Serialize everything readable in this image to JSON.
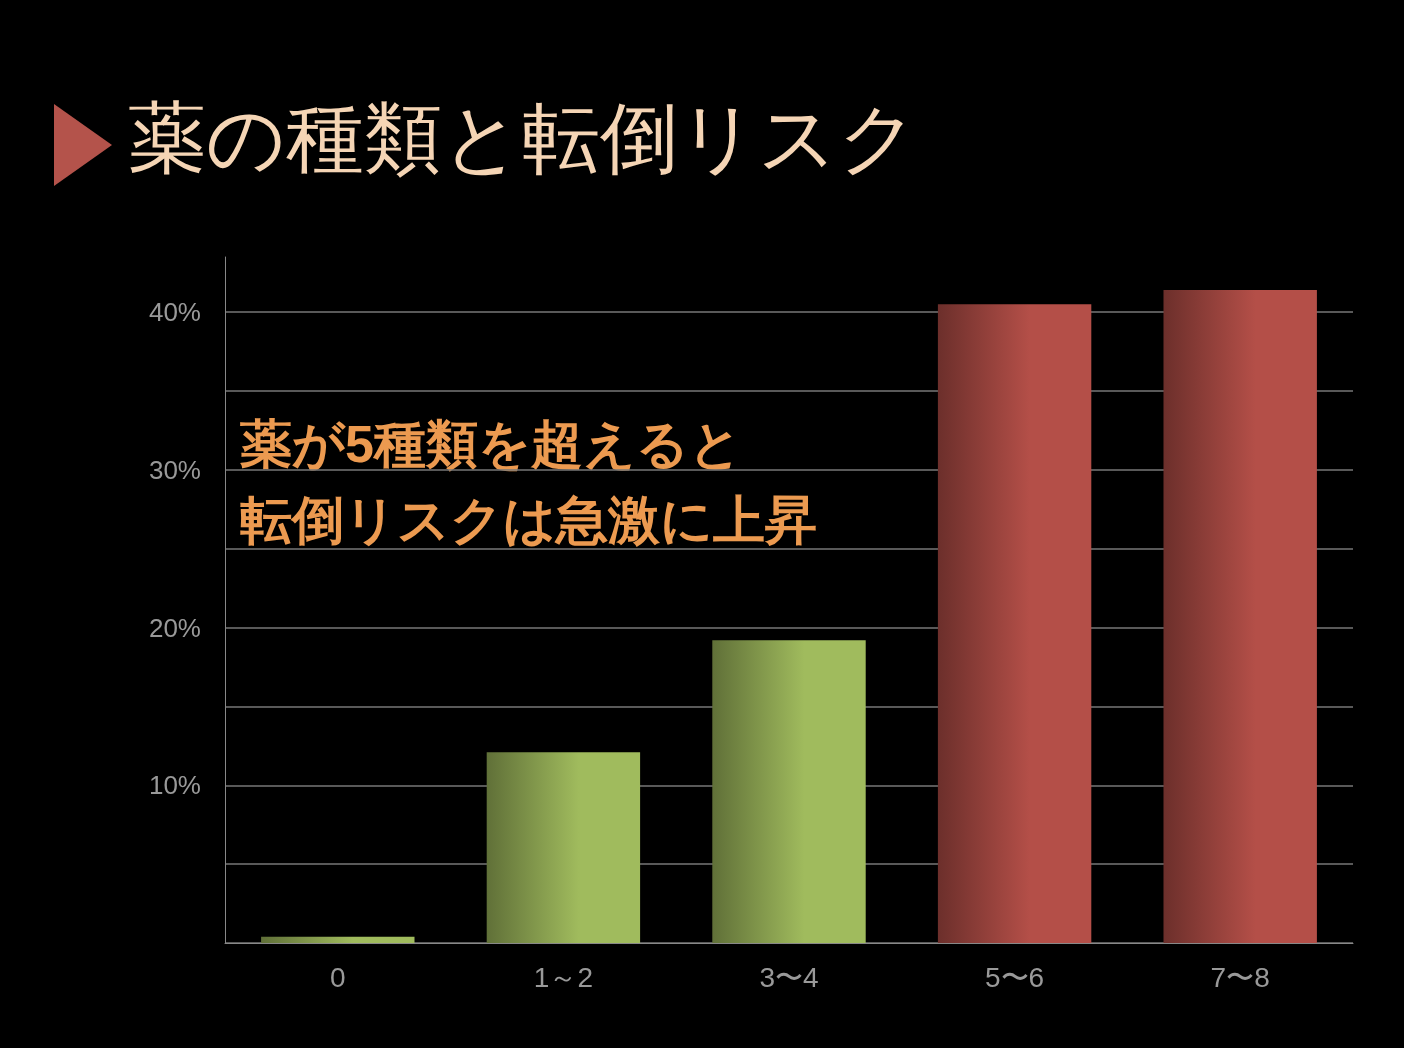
{
  "chart_data": {
    "type": "bar",
    "title": "薬の種類と転倒リスク",
    "categories": [
      "0",
      "1～2",
      "3〜4",
      "5〜6",
      "7〜8"
    ],
    "values": [
      0.4,
      12.1,
      19.2,
      40.5,
      41.4
    ],
    "colors": [
      "#a0bb5d",
      "#a0bb5d",
      "#a0bb5d",
      "#b44f48",
      "#b44f48"
    ],
    "ylim": [
      0,
      43.5
    ],
    "yticks": [
      {
        "value": 5,
        "label": null
      },
      {
        "value": 10,
        "label": "10%"
      },
      {
        "value": 15,
        "label": null
      },
      {
        "value": 20,
        "label": "20%"
      },
      {
        "value": 25,
        "label": null
      },
      {
        "value": 30,
        "label": "30%"
      },
      {
        "value": 35,
        "label": null
      },
      {
        "value": 40,
        "label": "40%"
      }
    ],
    "grid": "y",
    "annotations": [
      "薬が5種類を超えると",
      "転倒リスクは急激に上昇"
    ]
  }
}
